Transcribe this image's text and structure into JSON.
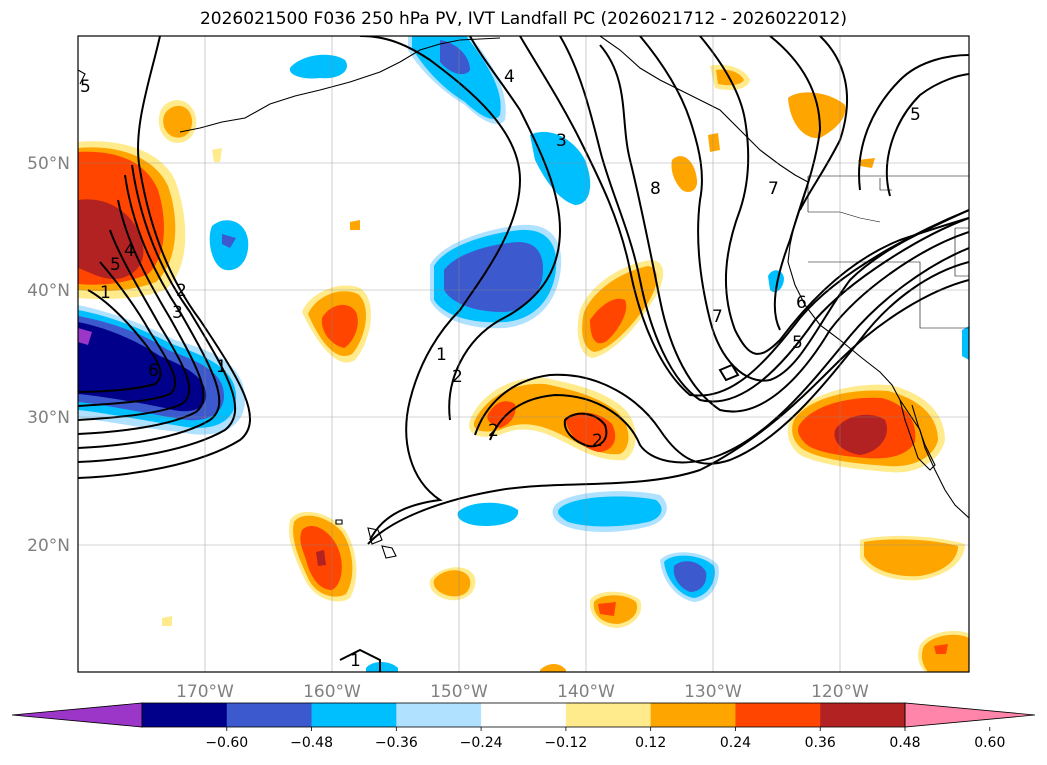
{
  "title": "2026021500 F036 250 hPa PV, IVT Landfall PC (2026021712 - 2026022012)",
  "map": {
    "lat_labels": [
      "50°N",
      "40°N",
      "30°N",
      "20°N"
    ],
    "lon_labels": [
      "170°W",
      "160°W",
      "150°W",
      "140°W",
      "130°W",
      "120°W"
    ],
    "lon_range": [
      -180,
      -110
    ],
    "lat_range": [
      10,
      60
    ],
    "gridlines": true
  },
  "colorbar": {
    "colors": [
      "#9b36c9",
      "#00008b",
      "#3c5acd",
      "#00bfff",
      "#b0e2ff",
      "#ffffff",
      "#ffea8c",
      "#ffa500",
      "#ff4500",
      "#b22222",
      "#ff85aa"
    ],
    "tick_labels": [
      "−0.60",
      "−0.48",
      "−0.36",
      "−0.24",
      "−0.12",
      "0.12",
      "0.24",
      "0.36",
      "0.48",
      "0.60"
    ],
    "extend": "both"
  },
  "contour_labels": [
    "4",
    "3",
    "8",
    "7",
    "6",
    "5",
    "1",
    "2",
    "7",
    "5",
    "5",
    "4",
    "5",
    "2",
    "3",
    "6",
    "1",
    "1",
    "2",
    "2",
    "1"
  ]
}
